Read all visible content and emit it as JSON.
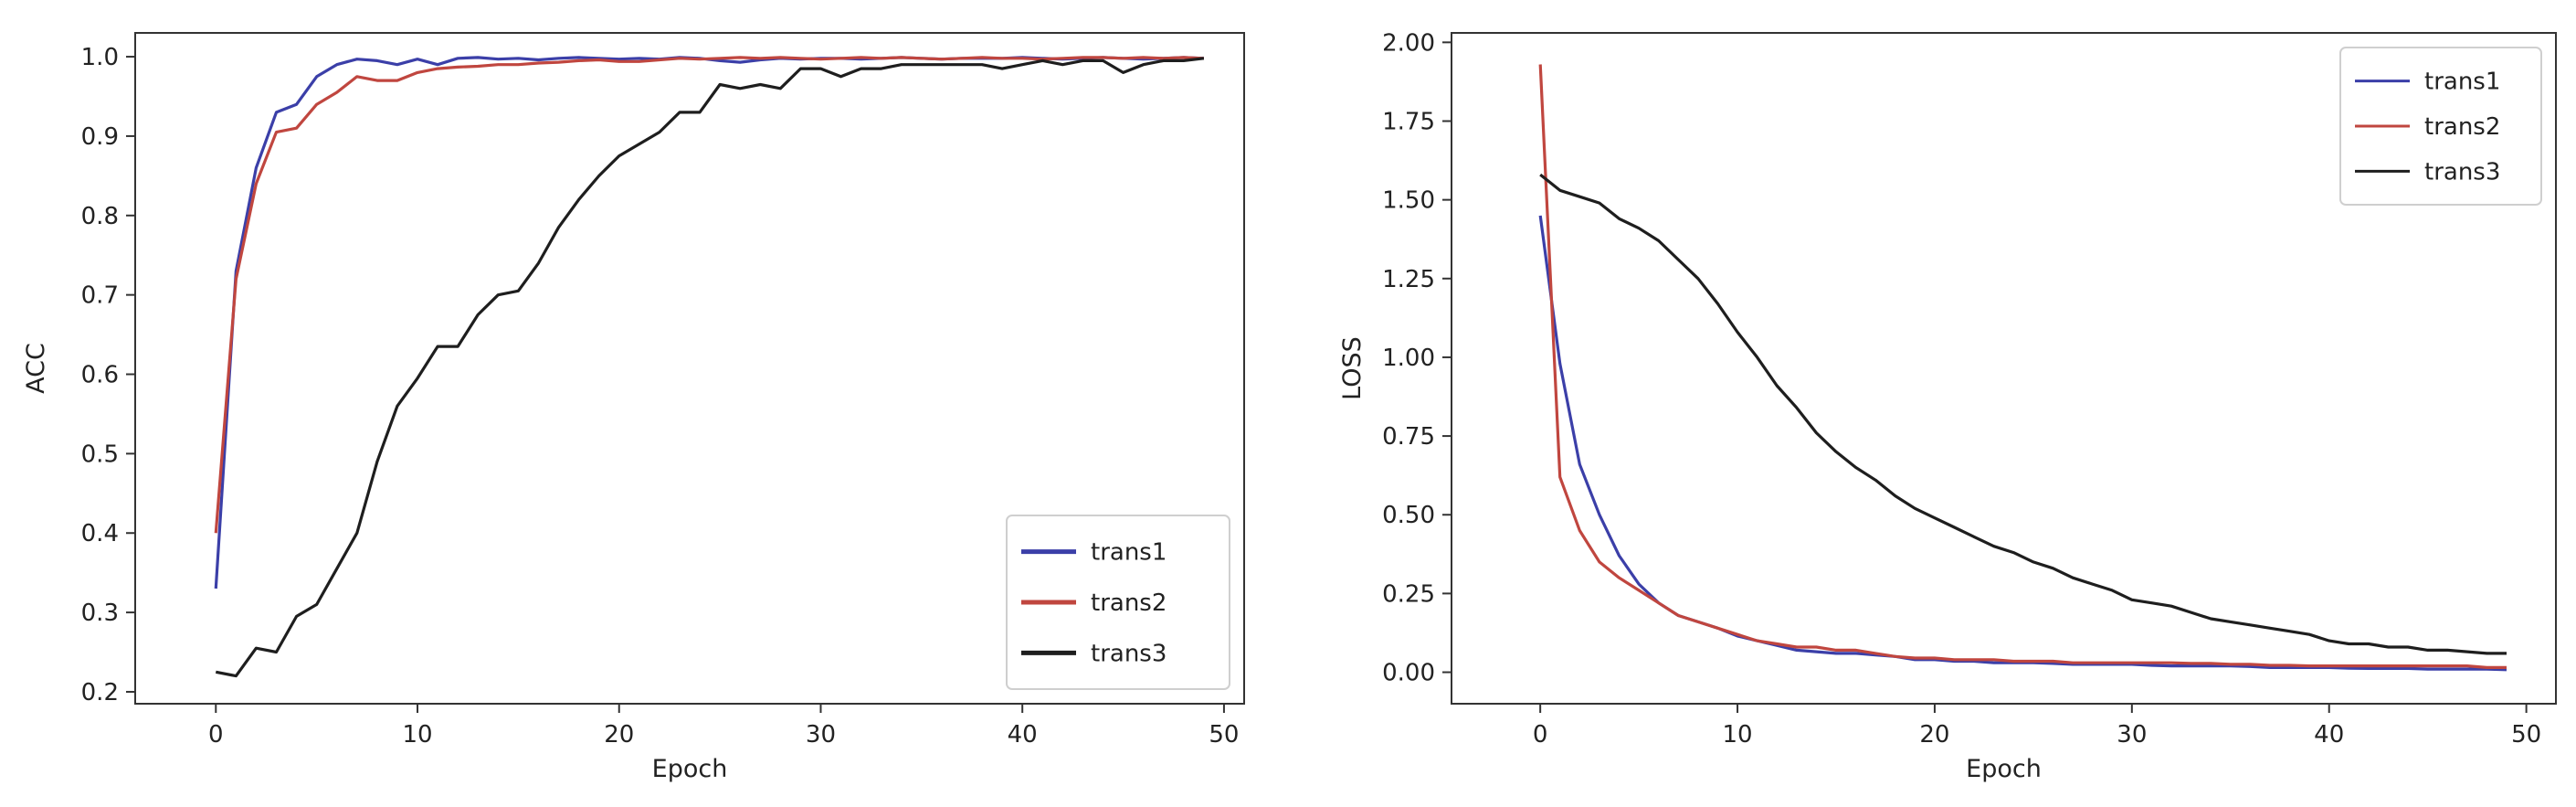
{
  "chart_data": [
    {
      "type": "line",
      "title": "",
      "xlabel": "Epoch",
      "ylabel": "ACC",
      "xlim": [
        -4,
        51
      ],
      "ylim": [
        0.185,
        1.03
      ],
      "xticks": [
        0,
        10,
        20,
        30,
        40,
        50
      ],
      "yticks": [
        0.2,
        0.3,
        0.4,
        0.5,
        0.6,
        0.7,
        0.8,
        0.9,
        1.0
      ],
      "ytick_labels": [
        "0.2",
        "0.3",
        "0.4",
        "0.5",
        "0.6",
        "0.7",
        "0.8",
        "0.9",
        "1.0"
      ],
      "grid": false,
      "legend": "lower-right",
      "legend_style": "thick",
      "series": [
        {
          "name": "trans1",
          "color": "#3b3fa8",
          "x": [
            0,
            1,
            2,
            3,
            4,
            5,
            6,
            7,
            8,
            9,
            10,
            11,
            12,
            13,
            14,
            15,
            16,
            17,
            18,
            19,
            20,
            21,
            22,
            23,
            24,
            25,
            26,
            27,
            28,
            29,
            30,
            31,
            32,
            33,
            34,
            35,
            36,
            37,
            38,
            39,
            40,
            41,
            42,
            43,
            44,
            45,
            46,
            47,
            48,
            49
          ],
          "y": [
            0.33,
            0.73,
            0.86,
            0.93,
            0.94,
            0.975,
            0.99,
            0.997,
            0.995,
            0.99,
            0.997,
            0.99,
            0.998,
            0.999,
            0.997,
            0.998,
            0.996,
            0.998,
            0.999,
            0.998,
            0.997,
            0.998,
            0.997,
            0.999,
            0.998,
            0.995,
            0.993,
            0.996,
            0.998,
            0.997,
            0.998,
            0.998,
            0.997,
            0.998,
            0.999,
            0.998,
            0.997,
            0.998,
            0.998,
            0.998,
            0.999,
            0.998,
            0.997,
            0.998,
            0.999,
            0.998,
            0.997,
            0.998,
            0.999,
            0.998
          ]
        },
        {
          "name": "trans2",
          "color": "#c0463f",
          "x": [
            0,
            1,
            2,
            3,
            4,
            5,
            6,
            7,
            8,
            9,
            10,
            11,
            12,
            13,
            14,
            15,
            16,
            17,
            18,
            19,
            20,
            21,
            22,
            23,
            24,
            25,
            26,
            27,
            28,
            29,
            30,
            31,
            32,
            33,
            34,
            35,
            36,
            37,
            38,
            39,
            40,
            41,
            42,
            43,
            44,
            45,
            46,
            47,
            48,
            49
          ],
          "y": [
            0.4,
            0.72,
            0.84,
            0.905,
            0.91,
            0.94,
            0.955,
            0.975,
            0.97,
            0.97,
            0.98,
            0.985,
            0.987,
            0.988,
            0.99,
            0.99,
            0.992,
            0.993,
            0.995,
            0.996,
            0.994,
            0.994,
            0.996,
            0.998,
            0.997,
            0.998,
            0.999,
            0.998,
            0.999,
            0.998,
            0.997,
            0.998,
            0.999,
            0.998,
            0.999,
            0.998,
            0.997,
            0.998,
            0.999,
            0.998,
            0.998,
            0.997,
            0.998,
            0.999,
            0.999,
            0.998,
            0.999,
            0.998,
            0.999,
            0.998
          ]
        },
        {
          "name": "trans3",
          "color": "#1e1e1e",
          "x": [
            0,
            1,
            2,
            3,
            4,
            5,
            6,
            7,
            8,
            9,
            10,
            11,
            12,
            13,
            14,
            15,
            16,
            17,
            18,
            19,
            20,
            21,
            22,
            23,
            24,
            25,
            26,
            27,
            28,
            29,
            30,
            31,
            32,
            33,
            34,
            35,
            36,
            37,
            38,
            39,
            40,
            41,
            42,
            43,
            44,
            45,
            46,
            47,
            48,
            49
          ],
          "y": [
            0.225,
            0.22,
            0.255,
            0.25,
            0.295,
            0.31,
            0.355,
            0.4,
            0.49,
            0.56,
            0.595,
            0.635,
            0.635,
            0.675,
            0.7,
            0.705,
            0.74,
            0.785,
            0.82,
            0.85,
            0.875,
            0.89,
            0.905,
            0.93,
            0.93,
            0.965,
            0.96,
            0.965,
            0.96,
            0.985,
            0.985,
            0.975,
            0.985,
            0.985,
            0.99,
            0.99,
            0.99,
            0.99,
            0.99,
            0.985,
            0.99,
            0.995,
            0.99,
            0.995,
            0.995,
            0.98,
            0.99,
            0.995,
            0.995,
            0.998
          ]
        }
      ]
    },
    {
      "type": "line",
      "title": "",
      "xlabel": "Epoch",
      "ylabel": "LOSS",
      "xlim": [
        -4.5,
        51.5
      ],
      "ylim": [
        -0.1,
        2.03
      ],
      "xticks": [
        0,
        10,
        20,
        30,
        40,
        50
      ],
      "yticks": [
        0.0,
        0.25,
        0.5,
        0.75,
        1.0,
        1.25,
        1.5,
        1.75,
        2.0
      ],
      "ytick_labels": [
        "0.00",
        "0.25",
        "0.50",
        "0.75",
        "1.00",
        "1.25",
        "1.50",
        "1.75",
        "2.00"
      ],
      "grid": false,
      "legend": "upper-right",
      "legend_style": "thin",
      "series": [
        {
          "name": "trans1",
          "color": "#3b3fa8",
          "x": [
            0,
            1,
            2,
            3,
            4,
            5,
            6,
            7,
            8,
            9,
            10,
            11,
            12,
            13,
            14,
            15,
            16,
            17,
            18,
            19,
            20,
            21,
            22,
            23,
            24,
            25,
            26,
            27,
            28,
            29,
            30,
            31,
            32,
            33,
            34,
            35,
            36,
            37,
            38,
            39,
            40,
            41,
            42,
            43,
            44,
            45,
            46,
            47,
            48,
            49
          ],
          "y": [
            1.45,
            0.98,
            0.66,
            0.5,
            0.37,
            0.28,
            0.22,
            0.18,
            0.16,
            0.14,
            0.115,
            0.1,
            0.085,
            0.07,
            0.065,
            0.06,
            0.06,
            0.055,
            0.05,
            0.04,
            0.04,
            0.035,
            0.035,
            0.03,
            0.03,
            0.03,
            0.028,
            0.025,
            0.025,
            0.025,
            0.025,
            0.022,
            0.02,
            0.02,
            0.02,
            0.02,
            0.018,
            0.015,
            0.015,
            0.015,
            0.015,
            0.013,
            0.012,
            0.012,
            0.012,
            0.01,
            0.01,
            0.01,
            0.01,
            0.008
          ]
        },
        {
          "name": "trans2",
          "color": "#c0463f",
          "x": [
            0,
            1,
            2,
            3,
            4,
            5,
            6,
            7,
            8,
            9,
            10,
            11,
            12,
            13,
            14,
            15,
            16,
            17,
            18,
            19,
            20,
            21,
            22,
            23,
            24,
            25,
            26,
            27,
            28,
            29,
            30,
            31,
            32,
            33,
            34,
            35,
            36,
            37,
            38,
            39,
            40,
            41,
            42,
            43,
            44,
            45,
            46,
            47,
            48,
            49
          ],
          "y": [
            1.93,
            0.62,
            0.45,
            0.35,
            0.3,
            0.26,
            0.22,
            0.18,
            0.16,
            0.14,
            0.12,
            0.1,
            0.09,
            0.08,
            0.08,
            0.07,
            0.07,
            0.06,
            0.05,
            0.045,
            0.045,
            0.04,
            0.04,
            0.04,
            0.035,
            0.035,
            0.035,
            0.03,
            0.03,
            0.03,
            0.03,
            0.03,
            0.03,
            0.028,
            0.028,
            0.025,
            0.025,
            0.022,
            0.022,
            0.02,
            0.02,
            0.02,
            0.02,
            0.02,
            0.02,
            0.02,
            0.02,
            0.02,
            0.015,
            0.015
          ]
        },
        {
          "name": "trans3",
          "color": "#1e1e1e",
          "x": [
            0,
            1,
            2,
            3,
            4,
            5,
            6,
            7,
            8,
            9,
            10,
            11,
            12,
            13,
            14,
            15,
            16,
            17,
            18,
            19,
            20,
            21,
            22,
            23,
            24,
            25,
            26,
            27,
            28,
            29,
            30,
            31,
            32,
            33,
            34,
            35,
            36,
            37,
            38,
            39,
            40,
            41,
            42,
            43,
            44,
            45,
            46,
            47,
            48,
            49
          ],
          "y": [
            1.58,
            1.53,
            1.51,
            1.49,
            1.44,
            1.41,
            1.37,
            1.31,
            1.25,
            1.17,
            1.08,
            1.0,
            0.91,
            0.84,
            0.76,
            0.7,
            0.65,
            0.61,
            0.56,
            0.52,
            0.49,
            0.46,
            0.43,
            0.4,
            0.38,
            0.35,
            0.33,
            0.3,
            0.28,
            0.26,
            0.23,
            0.22,
            0.21,
            0.19,
            0.17,
            0.16,
            0.15,
            0.14,
            0.13,
            0.12,
            0.1,
            0.09,
            0.09,
            0.08,
            0.08,
            0.07,
            0.07,
            0.065,
            0.06,
            0.06
          ]
        }
      ]
    }
  ]
}
